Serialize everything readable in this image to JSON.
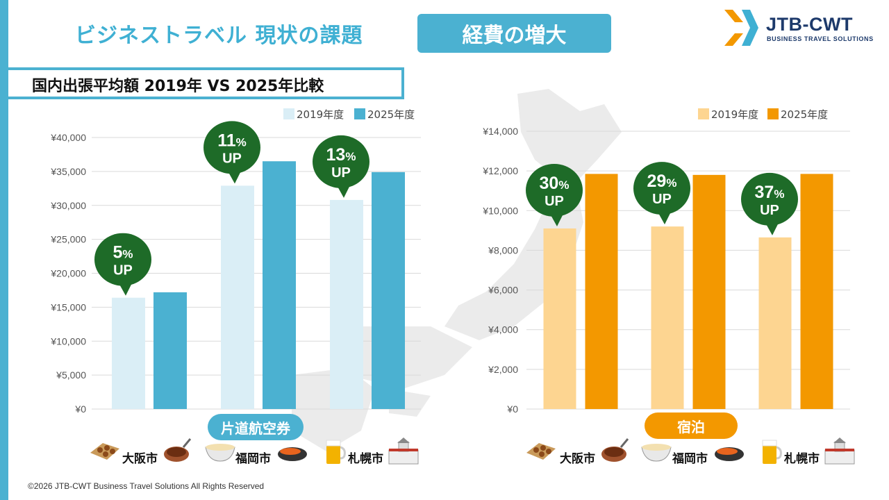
{
  "header": {
    "title": "ビジネストラベル 現状の課題",
    "badge": "経費の増大",
    "subtitle": "国内出張平均額 2019年 VS 2025年比較"
  },
  "logo": {
    "name": "JTB-CWT",
    "tagline": "BUSINESS TRAVEL SOLUTIONS"
  },
  "categories_labels": {
    "air": "片道航空券",
    "hotel": "宿泊"
  },
  "cities": [
    "大阪市",
    "福岡市",
    "札幌市"
  ],
  "copyright": "©2026 JTB-CWT Business Travel Solutions All Rights Reserved",
  "chart_data": [
    {
      "type": "bar",
      "categories": [
        "大阪市",
        "福岡市",
        "札幌市"
      ],
      "series": [
        {
          "name": "2019年度",
          "values": [
            16400,
            32900,
            30800
          ],
          "color": "#daeef6"
        },
        {
          "name": "2025年度",
          "values": [
            17200,
            36500,
            34900
          ],
          "color": "#4bb1d1"
        }
      ],
      "annotations": [
        {
          "pct": "5",
          "unit": "%",
          "label": "UP"
        },
        {
          "pct": "11",
          "unit": "%",
          "label": "UP"
        },
        {
          "pct": "13",
          "unit": "%",
          "label": "UP"
        }
      ],
      "ylim": [
        0,
        40000
      ],
      "yticks": [
        "¥0",
        "¥5,000",
        "¥10,000",
        "¥15,000",
        "¥20,000",
        "¥25,000",
        "¥30,000",
        "¥35,000",
        "¥40,000"
      ],
      "grid": true,
      "legend": "top-right"
    },
    {
      "type": "bar",
      "categories": [
        "大阪市",
        "福岡市",
        "札幌市"
      ],
      "series": [
        {
          "name": "2019年度",
          "values": [
            9100,
            9200,
            8650
          ],
          "color": "#fdd591"
        },
        {
          "name": "2025年度",
          "values": [
            11850,
            11800,
            11850
          ],
          "color": "#f39800"
        }
      ],
      "annotations": [
        {
          "pct": "30",
          "unit": "%",
          "label": "UP"
        },
        {
          "pct": "29",
          "unit": "%",
          "label": "UP"
        },
        {
          "pct": "37",
          "unit": "%",
          "label": "UP"
        }
      ],
      "ylim": [
        0,
        14000
      ],
      "yticks": [
        "¥0",
        "¥2,000",
        "¥4,000",
        "¥6,000",
        "¥8,000",
        "¥10,000",
        "¥12,000",
        "¥14,000"
      ],
      "grid": true,
      "legend": "top-right"
    }
  ]
}
